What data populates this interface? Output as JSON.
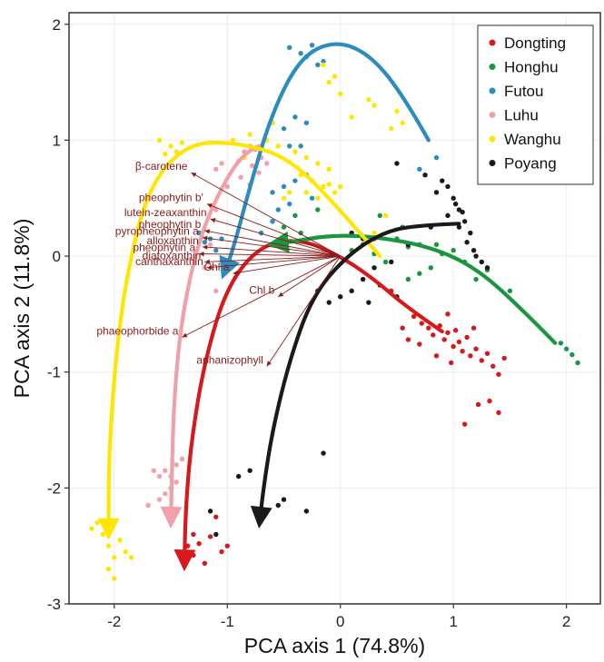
{
  "chart_data": {
    "type": "scatter",
    "title": "",
    "xlabel": "PCA axis 1 (74.8%)",
    "ylabel": "PCA axis 2 (11.8%)",
    "xlim": [
      -2.4,
      2.3
    ],
    "ylim": [
      -3.0,
      2.1
    ],
    "x_ticks": [
      -2,
      -1,
      0,
      1,
      2
    ],
    "y_ticks": [
      -3,
      -2,
      -1,
      0,
      1,
      2
    ],
    "x_tick_labels": [
      "-2",
      "-1",
      "0",
      "1",
      "2"
    ],
    "y_tick_labels": [
      "-3",
      "-2",
      "-1",
      "0",
      "1",
      "2"
    ],
    "grid": true,
    "legend_position": "top-right",
    "series": [
      {
        "name": "Dongting",
        "color": "#d7191c",
        "points": [
          [
            0.65,
            -0.52
          ],
          [
            0.72,
            -0.58
          ],
          [
            0.78,
            -0.62
          ],
          [
            0.82,
            -0.68
          ],
          [
            0.88,
            -0.6
          ],
          [
            0.92,
            -0.72
          ],
          [
            0.95,
            -0.66
          ],
          [
            1.0,
            -0.78
          ],
          [
            1.05,
            -0.74
          ],
          [
            1.08,
            -0.82
          ],
          [
            1.12,
            -0.7
          ],
          [
            1.15,
            -0.86
          ],
          [
            1.2,
            -0.8
          ],
          [
            1.25,
            -0.9
          ],
          [
            1.3,
            -0.84
          ],
          [
            1.35,
            -0.95
          ],
          [
            1.4,
            -1.02
          ],
          [
            1.45,
            -0.88
          ],
          [
            0.7,
            -0.76
          ],
          [
            0.85,
            -0.86
          ],
          [
            0.98,
            -0.92
          ],
          [
            1.02,
            -0.64
          ],
          [
            1.18,
            -0.62
          ],
          [
            0.6,
            -0.72
          ],
          [
            1.32,
            -1.25
          ],
          [
            1.4,
            -1.35
          ],
          [
            1.1,
            -1.45
          ],
          [
            1.22,
            -1.28
          ],
          [
            0.55,
            -0.62
          ],
          [
            0.95,
            -0.5
          ],
          [
            -1.35,
            -2.5
          ],
          [
            -1.3,
            -2.58
          ],
          [
            -1.25,
            -2.48
          ],
          [
            -1.4,
            -2.62
          ],
          [
            -1.2,
            -2.65
          ],
          [
            -1.15,
            -2.42
          ],
          [
            -1.05,
            -2.55
          ],
          [
            -1.1,
            -2.25
          ],
          [
            -1.3,
            -2.4
          ],
          [
            0.3,
            0.15
          ],
          [
            0.45,
            -0.3
          ],
          [
            -1.0,
            -2.5
          ]
        ]
      },
      {
        "name": "Honghu",
        "color": "#1a9641",
        "points": [
          [
            0.1,
            0.05
          ],
          [
            0.2,
            0.1
          ],
          [
            0.3,
            0.02
          ],
          [
            0.4,
            -0.05
          ],
          [
            0.5,
            0.15
          ],
          [
            0.6,
            0.08
          ],
          [
            0.7,
            0.1
          ],
          [
            0.8,
            -0.1
          ],
          [
            0.9,
            0.02
          ],
          [
            1.0,
            0.05
          ],
          [
            1.1,
            -0.05
          ],
          [
            1.2,
            -0.2
          ],
          [
            1.3,
            -0.12
          ],
          [
            0.7,
            -0.15
          ],
          [
            0.85,
            0.1
          ],
          [
            1.5,
            -0.3
          ],
          [
            1.95,
            -0.75
          ],
          [
            2.0,
            -0.8
          ],
          [
            2.05,
            -0.85
          ],
          [
            2.1,
            -0.92
          ],
          [
            0.55,
            0.25
          ],
          [
            0.35,
            0.35
          ],
          [
            -0.4,
            0.35
          ],
          [
            -0.5,
            0.25
          ],
          [
            -0.6,
            0.3
          ],
          [
            -0.35,
            0.2
          ],
          [
            -0.2,
            0.4
          ],
          [
            0.6,
            -0.2
          ]
        ]
      },
      {
        "name": "Futou",
        "color": "#2b8cbe",
        "points": [
          [
            -0.45,
            1.8
          ],
          [
            -0.35,
            1.75
          ],
          [
            -0.25,
            1.82
          ],
          [
            -0.15,
            1.68
          ],
          [
            -0.2,
            1.65
          ],
          [
            -0.3,
            1.72
          ],
          [
            -0.5,
            1.1
          ],
          [
            -0.6,
            1.15
          ],
          [
            -0.4,
            1.2
          ],
          [
            -0.3,
            1.15
          ],
          [
            -0.45,
            0.95
          ],
          [
            -0.35,
            0.95
          ],
          [
            -0.6,
            0.55
          ],
          [
            -0.5,
            0.6
          ],
          [
            -0.4,
            0.65
          ],
          [
            -0.3,
            0.7
          ],
          [
            -0.6,
            0.3
          ],
          [
            -0.7,
            0.2
          ],
          [
            -1.05,
            0.15
          ],
          [
            -1.15,
            0.15
          ],
          [
            -1.2,
            0.12
          ],
          [
            -1.1,
            0.05
          ],
          [
            -1.25,
            0.2
          ],
          [
            0.85,
            0.85
          ],
          [
            0.7,
            0.75
          ],
          [
            -0.45,
            0.45
          ],
          [
            -0.55,
            0.4
          ],
          [
            -0.25,
            0.5
          ]
        ]
      },
      {
        "name": "Luhu",
        "color": "#f0a0a8",
        "points": [
          [
            -0.8,
            0.95
          ],
          [
            -0.75,
            0.92
          ],
          [
            -0.85,
            0.9
          ],
          [
            -0.7,
            0.85
          ],
          [
            -0.9,
            0.82
          ],
          [
            -0.65,
            0.8
          ],
          [
            -0.78,
            0.78
          ],
          [
            -0.72,
            0.72
          ],
          [
            -0.88,
            0.68
          ],
          [
            -0.8,
            0.62
          ],
          [
            -1.1,
            0.75
          ],
          [
            -1.05,
            0.8
          ],
          [
            -1.0,
            0.6
          ],
          [
            -1.1,
            0.4
          ],
          [
            -1.15,
            0.1
          ],
          [
            -1.2,
            -0.1
          ],
          [
            -1.1,
            -0.3
          ],
          [
            -1.5,
            -1.9
          ],
          [
            -1.55,
            -1.85
          ],
          [
            -1.6,
            -1.9
          ],
          [
            -1.65,
            -1.85
          ],
          [
            -1.5,
            -2.0
          ],
          [
            -1.55,
            -2.05
          ],
          [
            -1.45,
            -1.95
          ],
          [
            -1.7,
            -2.15
          ],
          [
            -1.6,
            -2.1
          ],
          [
            -1.4,
            -1.75
          ],
          [
            -1.45,
            -1.8
          ]
        ]
      },
      {
        "name": "Wanghu",
        "color": "#ffe600",
        "points": [
          [
            -1.6,
            1.0
          ],
          [
            -1.5,
            0.95
          ],
          [
            -1.4,
            0.98
          ],
          [
            -1.55,
            0.88
          ],
          [
            -1.45,
            0.9
          ],
          [
            -0.6,
            1.15
          ],
          [
            -0.65,
            1.0
          ],
          [
            -0.55,
            0.95
          ],
          [
            -0.4,
            0.9
          ],
          [
            -0.3,
            0.85
          ],
          [
            -0.2,
            0.8
          ],
          [
            -0.1,
            0.75
          ],
          [
            -0.15,
            0.6
          ],
          [
            -0.05,
            0.55
          ],
          [
            -0.25,
            0.65
          ],
          [
            -0.35,
            0.7
          ],
          [
            -0.45,
            0.55
          ],
          [
            -0.5,
            0.5
          ],
          [
            -0.2,
            0.5
          ],
          [
            -0.1,
            0.62
          ],
          [
            0.0,
            0.6
          ],
          [
            -0.3,
            0.55
          ],
          [
            -0.15,
            1.65
          ],
          [
            -0.05,
            1.55
          ],
          [
            -0.1,
            1.5
          ],
          [
            0.0,
            1.4
          ],
          [
            0.1,
            1.2
          ],
          [
            0.25,
            1.35
          ],
          [
            0.3,
            1.3
          ],
          [
            0.45,
            1.1
          ],
          [
            0.5,
            1.25
          ],
          [
            0.55,
            1.15
          ],
          [
            0.3,
            0.2
          ],
          [
            0.4,
            0.35
          ],
          [
            -2.15,
            -2.3
          ],
          [
            -2.1,
            -2.4
          ],
          [
            -2.05,
            -2.5
          ],
          [
            -2.2,
            -2.35
          ],
          [
            -2.0,
            -2.6
          ],
          [
            -1.95,
            -2.45
          ],
          [
            -2.05,
            -2.7
          ],
          [
            -2.0,
            -2.78
          ],
          [
            -1.9,
            -2.55
          ],
          [
            -1.85,
            -2.6
          ],
          [
            -0.8,
            1.05
          ],
          [
            -0.95,
            1.0
          ],
          [
            -0.7,
            0.95
          ],
          [
            -0.85,
            0.85
          ]
        ]
      },
      {
        "name": "Poyang",
        "color": "#1a1a1a",
        "points": [
          [
            0.5,
            0.8
          ],
          [
            0.75,
            0.7
          ],
          [
            0.85,
            0.55
          ],
          [
            0.9,
            0.65
          ],
          [
            0.95,
            0.6
          ],
          [
            1.0,
            0.5
          ],
          [
            1.05,
            0.4
          ],
          [
            1.02,
            0.45
          ],
          [
            1.08,
            0.38
          ],
          [
            1.1,
            0.3
          ],
          [
            1.05,
            0.25
          ],
          [
            1.15,
            0.2
          ],
          [
            1.12,
            0.12
          ],
          [
            1.18,
            0.05
          ],
          [
            1.2,
            0.0
          ],
          [
            1.25,
            -0.05
          ],
          [
            1.3,
            -0.1
          ],
          [
            0.95,
            0.35
          ],
          [
            0.8,
            0.25
          ],
          [
            0.6,
            0.1
          ],
          [
            0.45,
            -0.05
          ],
          [
            0.3,
            -0.1
          ],
          [
            0.2,
            -0.2
          ],
          [
            0.1,
            -0.3
          ],
          [
            0.0,
            -0.35
          ],
          [
            -0.1,
            -0.4
          ],
          [
            -0.2,
            -0.3
          ],
          [
            0.35,
            -0.25
          ],
          [
            0.5,
            -0.35
          ],
          [
            0.25,
            -0.4
          ],
          [
            -0.15,
            -1.7
          ],
          [
            -0.3,
            -2.2
          ],
          [
            -0.55,
            -2.15
          ],
          [
            -0.8,
            -1.85
          ],
          [
            -0.9,
            -1.9
          ],
          [
            -0.5,
            -2.1
          ],
          [
            -1.15,
            -2.2
          ],
          [
            -1.1,
            -2.4
          ],
          [
            0.1,
            0.2
          ],
          [
            0.2,
            0.15
          ]
        ]
      }
    ],
    "trajectories": [
      {
        "name": "Dongting",
        "color": "#d7191c",
        "path": [
          [
            0.9,
            -0.65
          ],
          [
            0.6,
            -0.45
          ],
          [
            0.3,
            -0.2
          ],
          [
            0.0,
            0.0
          ],
          [
            -0.35,
            0.15
          ],
          [
            -0.7,
            0.1
          ],
          [
            -1.0,
            -0.25
          ],
          [
            -1.2,
            -0.9
          ],
          [
            -1.32,
            -1.6
          ],
          [
            -1.37,
            -2.2
          ],
          [
            -1.38,
            -2.72
          ]
        ]
      },
      {
        "name": "Honghu",
        "color": "#1a9641",
        "path": [
          [
            1.9,
            -0.75
          ],
          [
            1.6,
            -0.45
          ],
          [
            1.2,
            -0.1
          ],
          [
            0.8,
            0.08
          ],
          [
            0.3,
            0.17
          ],
          [
            -0.1,
            0.18
          ],
          [
            -0.45,
            0.12
          ],
          [
            -0.65,
            0.1
          ]
        ]
      },
      {
        "name": "Futou",
        "color": "#2b8cbe",
        "path": [
          [
            0.78,
            1.0
          ],
          [
            0.55,
            1.4
          ],
          [
            0.25,
            1.75
          ],
          [
            -0.05,
            1.86
          ],
          [
            -0.35,
            1.72
          ],
          [
            -0.6,
            1.25
          ],
          [
            -0.8,
            0.6
          ],
          [
            -0.95,
            0.05
          ],
          [
            -1.05,
            -0.2
          ]
        ]
      },
      {
        "name": "Luhu",
        "color": "#f0a0a8",
        "path": [
          [
            -0.72,
            0.95
          ],
          [
            -0.85,
            0.9
          ],
          [
            -1.05,
            0.6
          ],
          [
            -1.25,
            0.15
          ],
          [
            -1.4,
            -0.5
          ],
          [
            -1.47,
            -1.2
          ],
          [
            -1.49,
            -1.85
          ],
          [
            -1.5,
            -2.35
          ]
        ]
      },
      {
        "name": "Wanghu",
        "color": "#ffe600",
        "path": [
          [
            0.35,
            0.0
          ],
          [
            0.0,
            0.4
          ],
          [
            -0.45,
            0.85
          ],
          [
            -0.9,
            0.98
          ],
          [
            -1.35,
            0.98
          ],
          [
            -1.7,
            0.6
          ],
          [
            -1.9,
            -0.2
          ],
          [
            -2.0,
            -1.0
          ],
          [
            -2.05,
            -1.8
          ],
          [
            -2.05,
            -2.45
          ]
        ]
      },
      {
        "name": "Poyang",
        "color": "#1a1a1a",
        "path": [
          [
            1.05,
            0.28
          ],
          [
            0.75,
            0.27
          ],
          [
            0.4,
            0.22
          ],
          [
            0.05,
            0.0
          ],
          [
            -0.25,
            -0.35
          ],
          [
            -0.45,
            -0.9
          ],
          [
            -0.6,
            -1.5
          ],
          [
            -0.68,
            -2.0
          ],
          [
            -0.72,
            -2.35
          ]
        ]
      }
    ],
    "loadings": {
      "color": "#8b1a1a",
      "vectors": [
        {
          "label": "β-carotene",
          "x": -1.32,
          "y": 0.72
        },
        {
          "label": "pheophytin b'",
          "x": -1.18,
          "y": 0.45
        },
        {
          "label": "lutein-zeaxanthin",
          "x": -1.15,
          "y": 0.32
        },
        {
          "label": "pheophytin b",
          "x": -1.2,
          "y": 0.22
        },
        {
          "label": "pyropheophytin a",
          "x": -1.22,
          "y": 0.16
        },
        {
          "label": "alloxanthin",
          "x": -1.22,
          "y": 0.08
        },
        {
          "label": "pheophytin a",
          "x": -1.25,
          "y": 0.02
        },
        {
          "label": "diatoxanthin",
          "x": -1.2,
          "y": -0.05
        },
        {
          "label": "canthaxanthin",
          "x": -1.18,
          "y": -0.1
        },
        {
          "label": "Chl a",
          "x": -0.95,
          "y": -0.15
        },
        {
          "label": "Chl b",
          "x": -0.55,
          "y": -0.35
        },
        {
          "label": "phaeophorbide a",
          "x": -1.4,
          "y": -0.7
        },
        {
          "label": "aphanizophyll",
          "x": -0.65,
          "y": -0.95
        }
      ]
    }
  }
}
